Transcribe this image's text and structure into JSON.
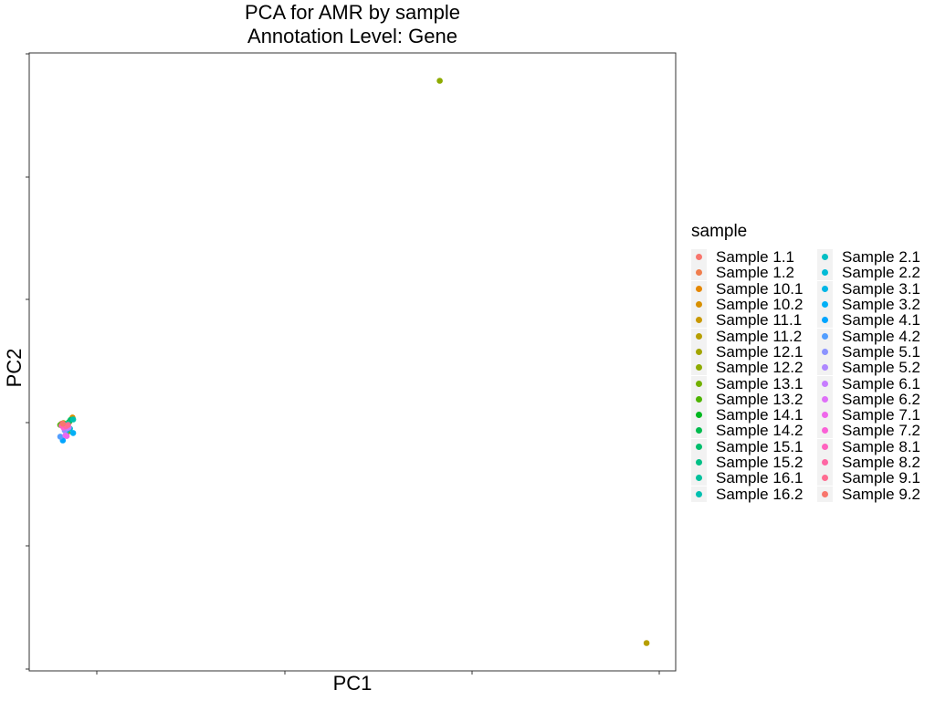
{
  "chart_data": {
    "type": "scatter",
    "title": "PCA for AMR by sample",
    "subtitle": "Annotation Level: Gene",
    "xlabel": "PC1",
    "ylabel": "PC2",
    "grid": false,
    "legend_placement": "right",
    "legend_title": "sample",
    "xlim": [
      0,
      100
    ],
    "ylim": [
      0,
      100
    ],
    "series": [
      {
        "name": "Sample 1.1",
        "color": "#F8766D",
        "points": [
          [
            5.0,
            40.0
          ]
        ]
      },
      {
        "name": "Sample 1.2",
        "color": "#F07E4E",
        "points": [
          [
            5.5,
            39.6
          ]
        ]
      },
      {
        "name": "Sample 10.1",
        "color": "#E58700",
        "points": [
          [
            6.2,
            40.3
          ]
        ]
      },
      {
        "name": "Sample 10.2",
        "color": "#D89000",
        "points": [
          [
            6.7,
            41.0
          ]
        ]
      },
      {
        "name": "Sample 11.1",
        "color": "#C99800",
        "points": [
          [
            5.8,
            39.3
          ]
        ]
      },
      {
        "name": "Sample 11.2",
        "color": "#B79F00",
        "points": [
          [
            95.5,
            4.5
          ]
        ]
      },
      {
        "name": "Sample 12.1",
        "color": "#A3A500",
        "points": [
          [
            5.3,
            40.1
          ]
        ]
      },
      {
        "name": "Sample 12.2",
        "color": "#8EAB00",
        "points": [
          [
            63.5,
            95.5
          ]
        ]
      },
      {
        "name": "Sample 13.1",
        "color": "#72B000",
        "points": [
          [
            5.9,
            38.6
          ]
        ]
      },
      {
        "name": "Sample 13.2",
        "color": "#4EB400",
        "points": [
          [
            4.8,
            39.8
          ]
        ]
      },
      {
        "name": "Sample 14.1",
        "color": "#00B81F",
        "points": [
          [
            5.1,
            39.9
          ]
        ]
      },
      {
        "name": "Sample 14.2",
        "color": "#00BB4E",
        "points": [
          [
            6.1,
            40.2
          ]
        ]
      },
      {
        "name": "Sample 15.1",
        "color": "#00BE6C",
        "points": [
          [
            6.4,
            40.6
          ]
        ]
      },
      {
        "name": "Sample 15.2",
        "color": "#00C086",
        "points": [
          [
            5.6,
            39.9
          ]
        ]
      },
      {
        "name": "Sample 16.1",
        "color": "#00C19C",
        "points": [
          [
            6.0,
            40.0
          ]
        ]
      },
      {
        "name": "Sample 16.2",
        "color": "#00C0B0",
        "points": [
          [
            6.8,
            40.7
          ]
        ]
      },
      {
        "name": "Sample 2.1",
        "color": "#00BFC4",
        "points": [
          [
            5.4,
            39.5
          ]
        ]
      },
      {
        "name": "Sample 2.2",
        "color": "#00BBD6",
        "points": [
          [
            6.3,
            39.2
          ]
        ]
      },
      {
        "name": "Sample 3.1",
        "color": "#00B6E6",
        "points": [
          [
            5.7,
            38.8
          ]
        ]
      },
      {
        "name": "Sample 3.2",
        "color": "#00B0F6",
        "points": [
          [
            6.8,
            38.5
          ]
        ]
      },
      {
        "name": "Sample 4.1",
        "color": "#00A5FF",
        "points": [
          [
            5.2,
            37.3
          ]
        ]
      },
      {
        "name": "Sample 4.2",
        "color": "#529EFF",
        "points": [
          [
            4.8,
            37.9
          ]
        ]
      },
      {
        "name": "Sample 5.1",
        "color": "#8B93FF",
        "points": [
          [
            5.5,
            38.9
          ]
        ]
      },
      {
        "name": "Sample 5.2",
        "color": "#AE87FF",
        "points": [
          [
            5.9,
            39.3
          ]
        ]
      },
      {
        "name": "Sample 6.1",
        "color": "#C77CFF",
        "points": [
          [
            6.1,
            39.4
          ]
        ]
      },
      {
        "name": "Sample 6.2",
        "color": "#DF70F8",
        "points": [
          [
            5.6,
            38.1
          ]
        ]
      },
      {
        "name": "Sample 7.1",
        "color": "#EF67EB",
        "points": [
          [
            5.8,
            38.0
          ]
        ]
      },
      {
        "name": "Sample 7.2",
        "color": "#FB61D7",
        "points": [
          [
            5.3,
            39.4
          ]
        ]
      },
      {
        "name": "Sample 8.1",
        "color": "#FF62BF",
        "points": [
          [
            5.0,
            39.7
          ]
        ]
      },
      {
        "name": "Sample 8.2",
        "color": "#FF67A4",
        "points": [
          [
            5.7,
            39.6
          ]
        ]
      },
      {
        "name": "Sample 9.1",
        "color": "#FF6C91",
        "points": [
          [
            6.0,
            39.8
          ]
        ]
      },
      {
        "name": "Sample 9.2",
        "color": "#F8766D",
        "points": [
          [
            5.2,
            40.0
          ]
        ]
      }
    ]
  }
}
